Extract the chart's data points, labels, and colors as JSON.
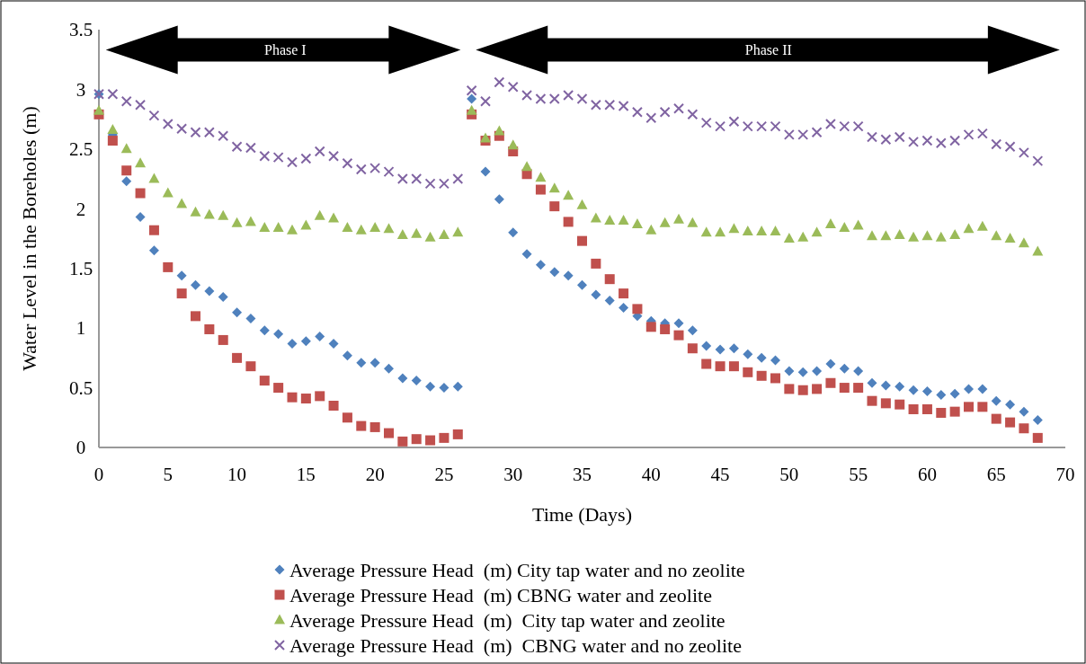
{
  "chart_data": {
    "type": "scatter",
    "xlabel": "Time (Days)",
    "ylabel": "Water Level in the Boreholes (m)",
    "x": [
      0,
      1,
      2,
      3,
      4,
      5,
      6,
      7,
      8,
      9,
      10,
      11,
      12,
      13,
      14,
      15,
      16,
      17,
      18,
      19,
      20,
      21,
      22,
      23,
      24,
      25,
      26,
      27,
      28,
      29,
      30,
      31,
      32,
      33,
      34,
      35,
      36,
      37,
      38,
      39,
      40,
      41,
      42,
      43,
      44,
      45,
      46,
      47,
      48,
      49,
      50,
      51,
      52,
      53,
      54,
      55,
      56,
      57,
      58,
      59,
      60,
      61,
      62,
      63,
      64,
      65,
      66,
      67,
      68
    ],
    "xlim": [
      0,
      70
    ],
    "xticks": [
      0,
      5,
      10,
      15,
      20,
      25,
      30,
      35,
      40,
      45,
      50,
      55,
      60,
      65,
      70
    ],
    "ylim": [
      0,
      3.5
    ],
    "yticks": [
      0,
      0.5,
      1,
      1.5,
      2,
      2.5,
      3,
      3.5
    ],
    "grid": false,
    "legend": "bottom",
    "annotations": [
      "Phase I",
      "Phase II"
    ],
    "series": [
      {
        "name": "Average Pressure Head  (m) City tap water and no zeolite",
        "color": "#4f81bd",
        "marker": "diamond",
        "values": [
          2.96,
          2.62,
          2.23,
          1.93,
          1.65,
          null,
          1.44,
          1.36,
          1.31,
          1.26,
          1.13,
          1.08,
          0.98,
          0.95,
          0.87,
          0.89,
          0.93,
          0.87,
          0.77,
          0.71,
          0.71,
          0.66,
          0.58,
          0.56,
          0.51,
          0.5,
          0.51,
          2.92,
          2.31,
          2.08,
          1.8,
          1.62,
          1.53,
          1.47,
          1.44,
          1.36,
          1.28,
          1.23,
          1.17,
          1.1,
          1.06,
          1.04,
          1.04,
          0.98,
          0.85,
          0.82,
          0.83,
          0.78,
          0.75,
          0.73,
          0.64,
          0.63,
          0.64,
          0.7,
          0.66,
          0.64,
          0.54,
          0.52,
          0.51,
          0.48,
          0.47,
          0.44,
          0.45,
          0.49,
          0.49,
          0.39,
          0.36,
          0.3,
          0.23
        ]
      },
      {
        "name": "Average Pressure Head  (m) CBNG water and zeolite",
        "color": "#c0504d",
        "marker": "square",
        "values": [
          2.79,
          2.57,
          2.32,
          2.13,
          1.82,
          1.51,
          1.29,
          1.1,
          0.99,
          0.9,
          0.75,
          0.68,
          0.56,
          0.5,
          0.42,
          0.41,
          0.43,
          0.35,
          0.25,
          0.18,
          0.17,
          0.12,
          0.05,
          0.07,
          0.06,
          0.08,
          0.11,
          2.79,
          2.57,
          2.61,
          2.48,
          2.29,
          2.16,
          2.02,
          1.89,
          1.73,
          1.54,
          1.41,
          1.29,
          1.16,
          1.01,
          0.99,
          0.94,
          0.83,
          0.7,
          0.68,
          0.68,
          0.63,
          0.6,
          0.58,
          0.49,
          0.48,
          0.49,
          0.54,
          0.5,
          0.5,
          0.39,
          0.37,
          0.36,
          0.32,
          0.32,
          0.29,
          0.3,
          0.34,
          0.34,
          0.24,
          0.21,
          0.16,
          0.08
        ]
      },
      {
        "name": "Average Pressure Head  (m)  City tap water and zeolite",
        "color": "#9bbb59",
        "marker": "triangle",
        "values": [
          2.82,
          2.66,
          2.5,
          2.38,
          2.25,
          2.13,
          2.04,
          1.97,
          1.95,
          1.94,
          1.88,
          1.89,
          1.84,
          1.84,
          1.82,
          1.86,
          1.94,
          1.92,
          1.84,
          1.82,
          1.84,
          1.83,
          1.78,
          1.79,
          1.76,
          1.78,
          1.8,
          2.82,
          2.59,
          2.65,
          2.53,
          2.35,
          2.26,
          2.17,
          2.11,
          2.03,
          1.92,
          1.9,
          1.9,
          1.87,
          1.82,
          1.88,
          1.91,
          1.88,
          1.8,
          1.8,
          1.83,
          1.81,
          1.81,
          1.81,
          1.75,
          1.76,
          1.8,
          1.87,
          1.84,
          1.86,
          1.77,
          1.77,
          1.78,
          1.76,
          1.77,
          1.76,
          1.78,
          1.83,
          1.85,
          1.77,
          1.75,
          1.71,
          1.64
        ]
      },
      {
        "name": "Average Pressure Head  (m)  CBNG water and no zeolite",
        "color": "#8064a2",
        "marker": "cross",
        "values": [
          2.96,
          2.96,
          2.9,
          2.87,
          2.78,
          2.71,
          2.67,
          2.64,
          2.64,
          2.61,
          2.52,
          2.51,
          2.44,
          2.43,
          2.39,
          2.42,
          2.48,
          2.44,
          2.38,
          2.33,
          2.34,
          2.31,
          2.25,
          2.25,
          2.21,
          2.21,
          2.25,
          2.99,
          2.9,
          3.06,
          3.02,
          2.95,
          2.92,
          2.92,
          2.95,
          2.92,
          2.87,
          2.87,
          2.86,
          2.81,
          2.76,
          2.81,
          2.84,
          2.79,
          2.72,
          2.69,
          2.73,
          2.69,
          2.69,
          2.69,
          2.62,
          2.62,
          2.64,
          2.71,
          2.69,
          2.69,
          2.6,
          2.58,
          2.6,
          2.56,
          2.57,
          2.55,
          2.57,
          2.62,
          2.63,
          2.54,
          2.52,
          2.47,
          2.4
        ]
      }
    ]
  }
}
